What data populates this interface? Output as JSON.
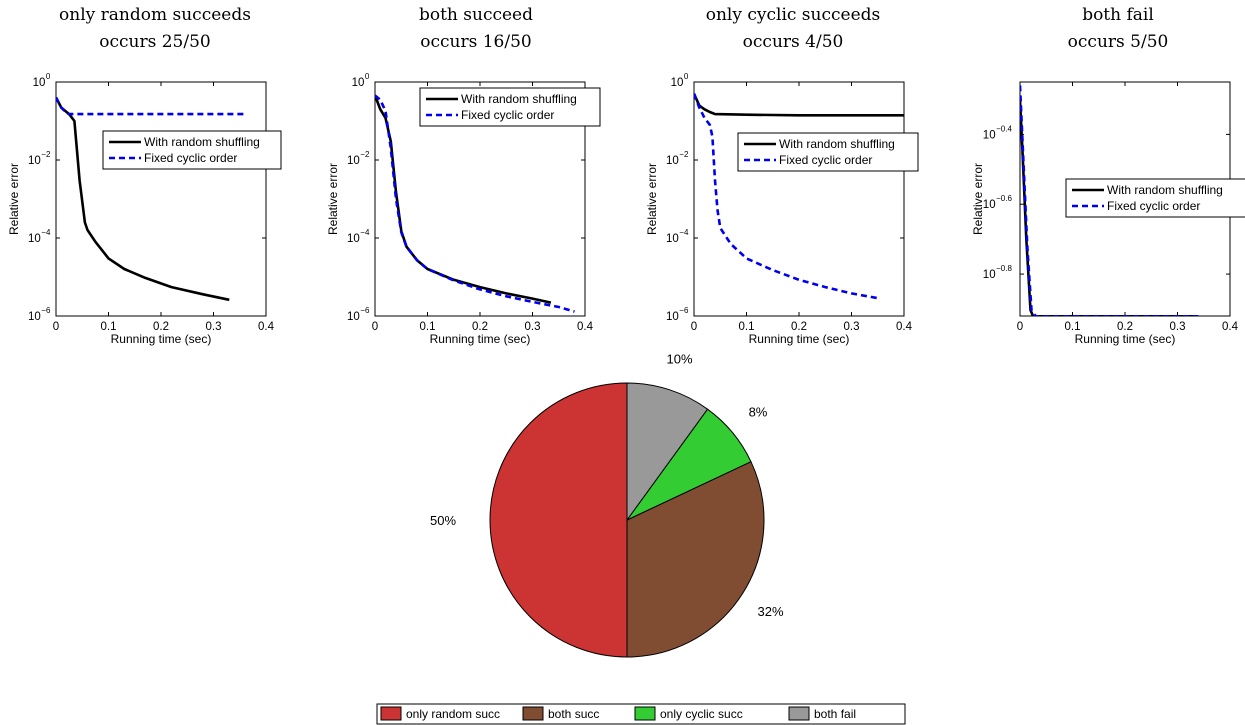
{
  "chart_data": [
    {
      "type": "line",
      "title_lines": [
        "only random succeeds",
        "occurs 25/50"
      ],
      "xlabel": "Running time (sec)",
      "ylabel": "Relative error",
      "xlim": [
        0,
        0.4
      ],
      "ylim_log10": [
        -6,
        0
      ],
      "x_ticks": [
        "0",
        "0.1",
        "0.2",
        "0.3",
        "0.4"
      ],
      "y_ticks": [
        {
          "exp": 0,
          "label": "0"
        },
        {
          "exp": -2,
          "label": "−2"
        },
        {
          "exp": -4,
          "label": "−4"
        },
        {
          "exp": -6,
          "label": "−6"
        }
      ],
      "legend_position": "upper-right",
      "series": [
        {
          "name": "With random shuffling",
          "color": "#000000",
          "style": "solid",
          "points": [
            [
              0,
              0.4
            ],
            [
              0.01,
              0.22
            ],
            [
              0.025,
              0.15
            ],
            [
              0.035,
              0.1
            ],
            [
              0.045,
              0.003
            ],
            [
              0.055,
              0.00025
            ],
            [
              0.06,
              0.00016
            ],
            [
              0.075,
              8e-05
            ],
            [
              0.1,
              3e-05
            ],
            [
              0.13,
              1.6e-05
            ],
            [
              0.17,
              9.5e-06
            ],
            [
              0.22,
              5.5e-06
            ],
            [
              0.28,
              3.6e-06
            ],
            [
              0.33,
              2.6e-06
            ]
          ]
        },
        {
          "name": "Fixed cyclic order",
          "color": "#0000ee",
          "style": "dashed",
          "points": [
            [
              0,
              0.4
            ],
            [
              0.01,
              0.22
            ],
            [
              0.02,
              0.16
            ],
            [
              0.025,
              0.15
            ],
            [
              0.1,
              0.15
            ],
            [
              0.2,
              0.15
            ],
            [
              0.36,
              0.15
            ]
          ]
        }
      ]
    },
    {
      "type": "line",
      "title_lines": [
        "both succeed",
        "occurs 16/50"
      ],
      "xlabel": "Running time (sec)",
      "ylabel": "Relative error",
      "xlim": [
        0,
        0.4
      ],
      "ylim_log10": [
        -6,
        0
      ],
      "x_ticks": [
        "0",
        "0.1",
        "0.2",
        "0.3",
        "0.4"
      ],
      "y_ticks": [
        {
          "exp": 0,
          "label": "0"
        },
        {
          "exp": -2,
          "label": "−2"
        },
        {
          "exp": -4,
          "label": "−4"
        },
        {
          "exp": -6,
          "label": "−6"
        }
      ],
      "legend_position": "top-right",
      "series": [
        {
          "name": "With random shuffling",
          "color": "#000000",
          "style": "solid",
          "points": [
            [
              0,
              0.45
            ],
            [
              0.01,
              0.2
            ],
            [
              0.02,
              0.12
            ],
            [
              0.03,
              0.03
            ],
            [
              0.04,
              0.0015
            ],
            [
              0.05,
              0.00015
            ],
            [
              0.06,
              6e-05
            ],
            [
              0.08,
              2.7e-05
            ],
            [
              0.1,
              1.6e-05
            ],
            [
              0.15,
              8.5e-06
            ],
            [
              0.2,
              5.5e-06
            ],
            [
              0.25,
              3.8e-06
            ],
            [
              0.3,
              2.8e-06
            ],
            [
              0.335,
              2.2e-06
            ]
          ]
        },
        {
          "name": "Fixed cyclic order",
          "color": "#0000ee",
          "style": "dashed",
          "points": [
            [
              0,
              0.45
            ],
            [
              0.01,
              0.35
            ],
            [
              0.02,
              0.18
            ],
            [
              0.03,
              0.02
            ],
            [
              0.04,
              0.001
            ],
            [
              0.05,
              0.00014
            ],
            [
              0.06,
              6e-05
            ],
            [
              0.08,
              2.7e-05
            ],
            [
              0.1,
              1.6e-05
            ],
            [
              0.15,
              8.2e-06
            ],
            [
              0.2,
              4.8e-06
            ],
            [
              0.25,
              3.2e-06
            ],
            [
              0.3,
              2.3e-06
            ],
            [
              0.35,
              1.7e-06
            ],
            [
              0.38,
              1.3e-06
            ]
          ]
        }
      ]
    },
    {
      "type": "line",
      "title_lines": [
        "only cyclic succeeds",
        "occurs 4/50"
      ],
      "xlabel": "Running time (sec)",
      "ylabel": "Relative error",
      "xlim": [
        0,
        0.4
      ],
      "ylim_log10": [
        -6,
        0
      ],
      "x_ticks": [
        "0",
        "0.1",
        "0.2",
        "0.3",
        "0.4"
      ],
      "y_ticks": [
        {
          "exp": 0,
          "label": "0"
        },
        {
          "exp": -2,
          "label": "−2"
        },
        {
          "exp": -4,
          "label": "−4"
        },
        {
          "exp": -6,
          "label": "−6"
        }
      ],
      "legend_position": "upper-right",
      "series": [
        {
          "name": "With random shuffling",
          "color": "#000000",
          "style": "solid",
          "points": [
            [
              0,
              0.5
            ],
            [
              0.01,
              0.25
            ],
            [
              0.02,
              0.2
            ],
            [
              0.03,
              0.17
            ],
            [
              0.04,
              0.15
            ],
            [
              0.1,
              0.145
            ],
            [
              0.2,
              0.14
            ],
            [
              0.3,
              0.14
            ],
            [
              0.4,
              0.14
            ]
          ]
        },
        {
          "name": "Fixed cyclic order",
          "color": "#0000ee",
          "style": "dashed",
          "points": [
            [
              0,
              0.5
            ],
            [
              0.01,
              0.22
            ],
            [
              0.02,
              0.12
            ],
            [
              0.03,
              0.08
            ],
            [
              0.035,
              0.04
            ],
            [
              0.04,
              0.003
            ],
            [
              0.045,
              0.0005
            ],
            [
              0.05,
              0.00018
            ],
            [
              0.07,
              7e-05
            ],
            [
              0.1,
              3e-05
            ],
            [
              0.15,
              1.5e-05
            ],
            [
              0.2,
              8.5e-06
            ],
            [
              0.25,
              5.5e-06
            ],
            [
              0.3,
              3.8e-06
            ],
            [
              0.355,
              2.8e-06
            ]
          ]
        }
      ]
    },
    {
      "type": "line",
      "title_lines": [
        "both fail",
        "occurs 5/50"
      ],
      "xlabel": "Running time (sec)",
      "ylabel": "Relative error",
      "xlim": [
        0,
        0.4
      ],
      "ylim_log10": [
        -0.92,
        -0.25
      ],
      "x_ticks": [
        "0",
        "0.1",
        "0.2",
        "0.3",
        "0.4"
      ],
      "y_ticks": [
        {
          "exp": -0.4,
          "label": "−0.4"
        },
        {
          "exp": -0.6,
          "label": "−0.6"
        },
        {
          "exp": -0.8,
          "label": "−0.8"
        }
      ],
      "legend_position": "middle-right",
      "series": [
        {
          "name": "With random shuffling",
          "color": "#000000",
          "style": "solid",
          "points": [
            [
              0,
              0.5
            ],
            [
              0.005,
              0.35
            ],
            [
              0.012,
              0.2
            ],
            [
              0.02,
              0.125
            ],
            [
              0.025,
              0.12
            ],
            [
              0.1,
              0.12
            ],
            [
              0.2,
              0.12
            ],
            [
              0.34,
              0.12
            ]
          ]
        },
        {
          "name": "Fixed cyclic order",
          "color": "#0000ee",
          "style": "dashed",
          "points": [
            [
              0,
              0.55
            ],
            [
              0.006,
              0.35
            ],
            [
              0.014,
              0.19
            ],
            [
              0.022,
              0.125
            ],
            [
              0.03,
              0.12
            ],
            [
              0.1,
              0.12
            ],
            [
              0.2,
              0.12
            ],
            [
              0.34,
              0.12
            ]
          ]
        }
      ]
    },
    {
      "type": "pie",
      "labels": [
        "only random succ",
        "both succ",
        "only cyclic succ",
        "both fail"
      ],
      "values": [
        50,
        32,
        8,
        10
      ],
      "value_labels": [
        "50%",
        "32%",
        "8%",
        "10%"
      ],
      "colors": [
        "#cc3333",
        "#804d33",
        "#33cc33",
        "#999999"
      ],
      "start": "12 o'clock",
      "direction": "counterclockwise",
      "legend_position": "bottom"
    }
  ]
}
